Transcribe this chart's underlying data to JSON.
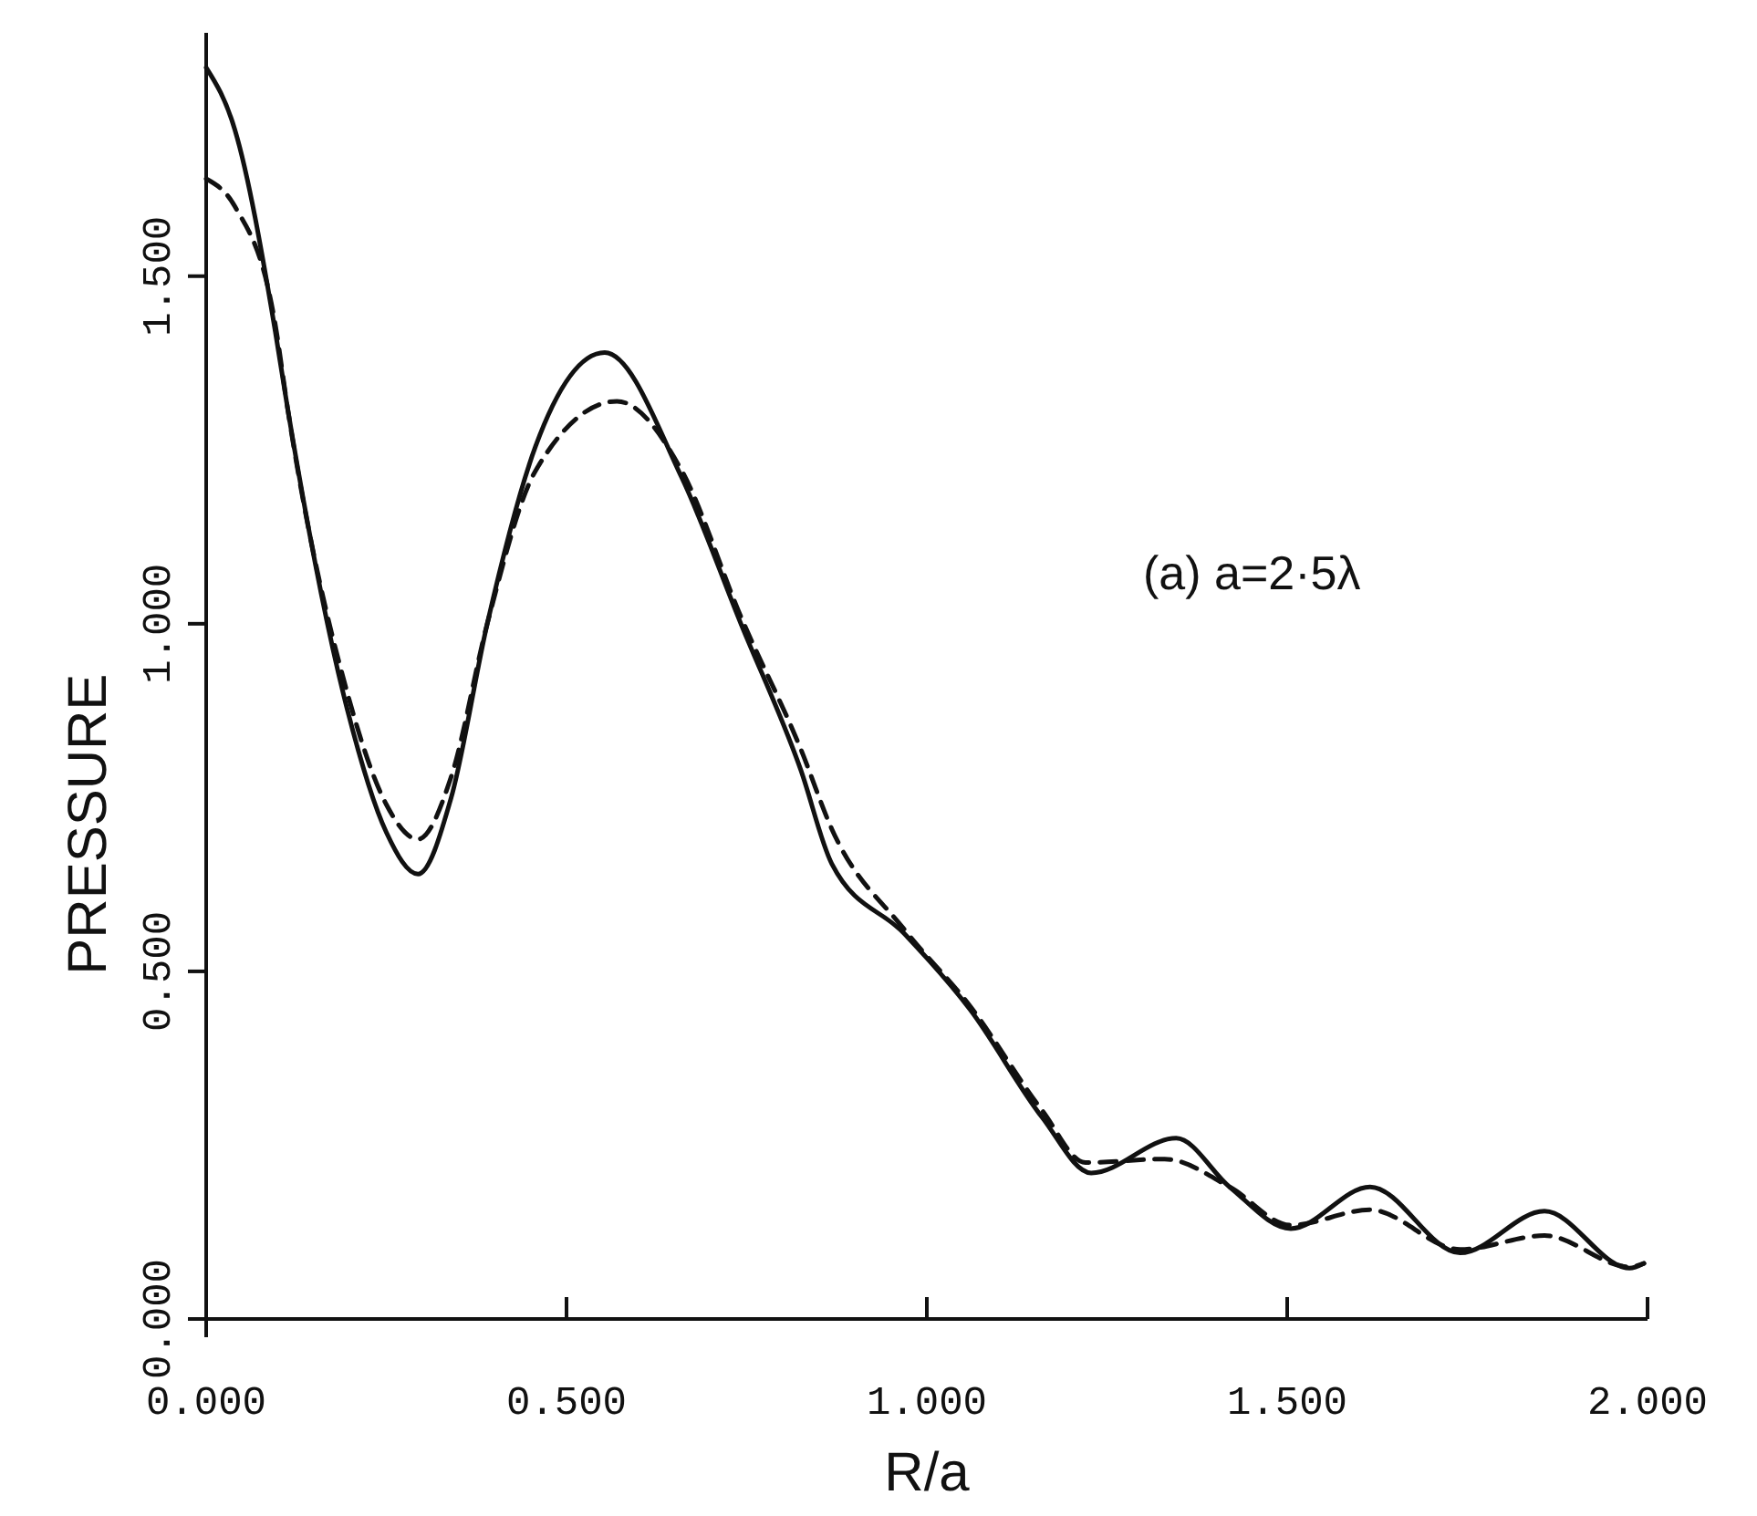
{
  "chart_data": {
    "type": "line",
    "xlabel": "R/a",
    "ylabel": "PRESSURE",
    "annotations": [
      "(a) a=2·5λ"
    ],
    "xlim": [
      0,
      2
    ],
    "xticks": [
      {
        "value": 0,
        "label": "0.000"
      },
      {
        "value": 0.5,
        "label": "0.500"
      },
      {
        "value": 1,
        "label": "1.000"
      },
      {
        "value": 1.5,
        "label": "1.500"
      },
      {
        "value": 2,
        "label": "2.000"
      }
    ],
    "ylim": [
      0,
      1.85
    ],
    "yticks": [
      {
        "value": 0,
        "label": "0.000"
      },
      {
        "value": 0.5,
        "label": "0.500"
      },
      {
        "value": 1,
        "label": "1.000"
      },
      {
        "value": 1.5,
        "label": "1.500"
      }
    ],
    "grid": false,
    "marker": "none",
    "series": [
      {
        "color": "#111111",
        "line_style": "solid",
        "x": [
          0,
          0.04,
          0.096,
          0.113,
          0.196,
          0.25,
          0.294,
          0.34,
          0.39,
          0.457,
          0.553,
          0.66,
          0.742,
          0.825,
          0.868,
          0.969,
          1.06,
          1.16,
          1.228,
          1.346,
          1.42,
          1.505,
          1.615,
          1.74,
          1.857,
          1.975,
          1.995
        ],
        "values": [
          1.8,
          1.71,
          1.42,
          1.31,
          0.876,
          0.7,
          0.64,
          0.75,
          1.0,
          1.255,
          1.39,
          1.21,
          1.0,
          0.79,
          0.655,
          0.554,
          0.445,
          0.29,
          0.21,
          0.26,
          0.19,
          0.13,
          0.19,
          0.095,
          0.155,
          0.073,
          0.08
        ]
      },
      {
        "color": "#111111",
        "line_style": "dashed",
        "x": [
          0,
          0.04,
          0.096,
          0.113,
          0.196,
          0.25,
          0.294,
          0.34,
          0.39,
          0.457,
          0.57,
          0.66,
          0.742,
          0.825,
          0.868,
          0.969,
          1.06,
          1.16,
          1.22,
          1.33,
          1.42,
          1.505,
          1.615,
          1.74,
          1.857,
          1.975,
          1.995
        ],
        "values": [
          1.64,
          1.6,
          1.43,
          1.31,
          0.9,
          0.74,
          0.69,
          0.78,
          1.0,
          1.22,
          1.32,
          1.22,
          1.01,
          0.82,
          0.705,
          0.56,
          0.45,
          0.3,
          0.225,
          0.23,
          0.19,
          0.135,
          0.157,
          0.1,
          0.12,
          0.075,
          0.08
        ]
      }
    ]
  }
}
